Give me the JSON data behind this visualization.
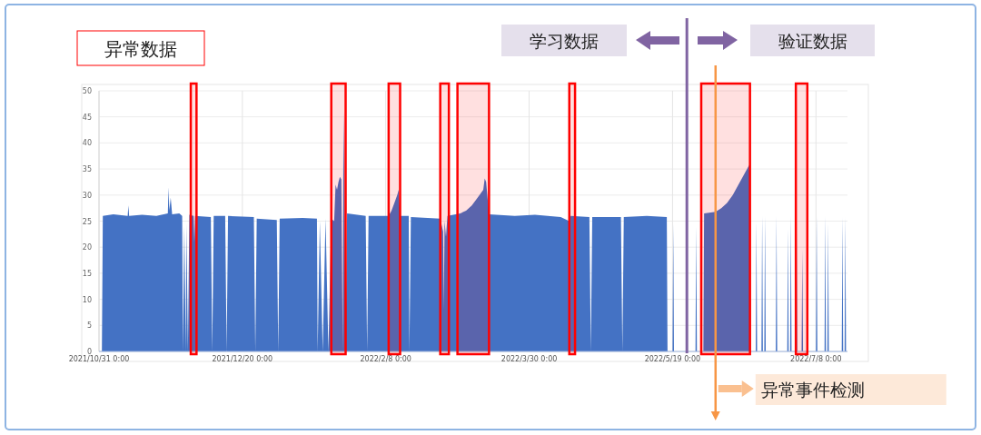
{
  "chart_data": {
    "type": "area",
    "title": "异常数据",
    "annotations": [
      "学习数据",
      "验证数据"
    ],
    "color": "#4472c4",
    "x": [
      "2021-11-01T00:00",
      "2021-11-01T08:00",
      "2021-11-05",
      "2021-11-10",
      "2021-11-10T06:00",
      "2021-11-10T12:00",
      "2021-11-15",
      "2021-11-20",
      "2021-11-24",
      "2021-11-24T06:00",
      "2021-11-24T12:00",
      "2021-11-25",
      "2021-11-25T12:00",
      "2021-11-28",
      "2021-11-29",
      "2021-11-29T06:00",
      "2021-11-29T18:00",
      "2021-11-30T06:00",
      "2021-11-30T12:00",
      "2021-12-01",
      "2021-12-01T12:00",
      "2021-12-03",
      "2021-12-03T06:00",
      "2021-12-03T12:00",
      "2021-12-09",
      "2021-12-09T12:00",
      "2021-12-10",
      "2021-12-14",
      "2021-12-14T12:00",
      "2021-12-15",
      "2021-12-24",
      "2021-12-24T12:00",
      "2021-12-25",
      "2022-01-01",
      "2022-01-01T12:00",
      "2022-01-02",
      "2022-01-10",
      "2022-01-15",
      "2022-01-15T06:00",
      "2022-01-16",
      "2022-01-17",
      "2022-01-18",
      "2022-01-19",
      "2022-01-20",
      "2022-01-21",
      "2022-01-21T12:00",
      "2022-01-22",
      "2022-01-22T12:00",
      "2022-01-23",
      "2022-01-23T12:00",
      "2022-01-24",
      "2022-01-24T06:00",
      "2022-01-24T12:00",
      "2022-01-25",
      "2022-01-25T12:00",
      "2022-02-01",
      "2022-02-01T12:00",
      "2022-02-02",
      "2022-02-09",
      "2022-02-10",
      "2022-02-11",
      "2022-02-12",
      "2022-02-12T12:00",
      "2022-02-13",
      "2022-02-16",
      "2022-02-16T06:00",
      "2022-02-16T18:00",
      "2022-02-27",
      "2022-02-28",
      "2022-02-28T06:00",
      "2022-02-28T12:00",
      "2022-03-01",
      "2022-03-01T12:00",
      "2022-03-06",
      "2022-03-08",
      "2022-03-10",
      "2022-03-12",
      "2022-03-14",
      "2022-03-14T12:00",
      "2022-03-15",
      "2022-03-16",
      "2022-03-25",
      "2022-04-01",
      "2022-04-10",
      "2022-04-13",
      "2022-04-13T12:00",
      "2022-04-20",
      "2022-04-20T12:00",
      "2022-04-21",
      "2022-05-01",
      "2022-05-01T12:00",
      "2022-05-02",
      "2022-05-10",
      "2022-05-17",
      "2022-05-17T06:00",
      "2022-05-19T00:00",
      "2022-05-19T06:00",
      "2022-05-19T12:00",
      "2022-05-27T00:00",
      "2022-05-27T06:00",
      "2022-05-27T12:00",
      "2022-05-29T18:00",
      "2022-05-30",
      "2022-06-03",
      "2022-06-05",
      "2022-06-07",
      "2022-06-09",
      "2022-06-11",
      "2022-06-13",
      "2022-06-15",
      "2022-06-15T06:00",
      "2022-06-17T00:00",
      "2022-06-17T06:00",
      "2022-06-17T12:00",
      "2022-06-19T00:00",
      "2022-06-19T06:00",
      "2022-06-19T12:00",
      "2022-06-20T00:00",
      "2022-06-20T06:00",
      "2022-06-20T12:00",
      "2022-06-24T00:00",
      "2022-06-24T06:00",
      "2022-06-24T12:00",
      "2022-06-28T00:00",
      "2022-06-28T06:00",
      "2022-06-28T12:00",
      "2022-06-29T00:00",
      "2022-06-29T06:00",
      "2022-06-29T12:00",
      "2022-07-01T00:00",
      "2022-07-01T06:00",
      "2022-07-01T12:00",
      "2022-07-03T00:00",
      "2022-07-03T06:00",
      "2022-07-03T12:00",
      "2022-07-08T00:00",
      "2022-07-08T06:00",
      "2022-07-08T12:00",
      "2022-07-11T00:00",
      "2022-07-11T06:00",
      "2022-07-11T12:00",
      "2022-07-12T00:00",
      "2022-07-12T06:00",
      "2022-07-12T12:00",
      "2022-07-17T00:00",
      "2022-07-17T06:00",
      "2022-07-17T12:00",
      "2022-07-18T00:00",
      "2022-07-18T06:00",
      "2022-07-18T12:00"
    ],
    "values": [
      0,
      26,
      26.3,
      26,
      28,
      26,
      26.2,
      26,
      26.5,
      31.5,
      27,
      29.5,
      26.3,
      26.5,
      26,
      0,
      24,
      0,
      24.5,
      0,
      26.2,
      26,
      21,
      26,
      25.8,
      0,
      26,
      26,
      0,
      26,
      25.8,
      0,
      25.5,
      25.2,
      0,
      25.5,
      25.6,
      25.5,
      0,
      25,
      0,
      25.5,
      0,
      25.5,
      25,
      32,
      31,
      32.5,
      33.5,
      33,
      0,
      46,
      35.5,
      0,
      26.5,
      26,
      0,
      26,
      26,
      27,
      28.5,
      30,
      31,
      26,
      26,
      0,
      25.8,
      25.5,
      23,
      8,
      25,
      22,
      26,
      26.5,
      27,
      28,
      29.5,
      31,
      33.2,
      32.5,
      26.3,
      26,
      26.2,
      25.8,
      25,
      26,
      25.8,
      0,
      25.8,
      25.8,
      0,
      25.8,
      26,
      25.8,
      0,
      0,
      24.5,
      0,
      0,
      24,
      0,
      0,
      26.5,
      26.8,
      27.5,
      28.5,
      30,
      32,
      34,
      36,
      0,
      0,
      25,
      0,
      0,
      26,
      0,
      0,
      26,
      0,
      0,
      26,
      0,
      0,
      23.5,
      0,
      0,
      26,
      0,
      0,
      26,
      0,
      0,
      19.5,
      0,
      0,
      26,
      0,
      0,
      26,
      0,
      0,
      24.5,
      0,
      0,
      25.8,
      0,
      0,
      25.8,
      0
    ],
    "xlim": [
      "2021-10-31",
      "2022-07-19"
    ],
    "xticks": [
      {
        "value": "2021-10-31",
        "label": "2021/10/31 0:00"
      },
      {
        "value": "2021-12-20",
        "label": "2021/12/20 0:00"
      },
      {
        "value": "2022-02-08",
        "label": "2022/2/8 0:00"
      },
      {
        "value": "2022-03-30",
        "label": "2022/3/30 0:00"
      },
      {
        "value": "2022-05-19",
        "label": "2022/5/19 0:00"
      },
      {
        "value": "2022-07-08",
        "label": "2022/7/8 0:00"
      }
    ],
    "ylim": [
      0,
      50
    ],
    "yticks": [
      0,
      5,
      10,
      15,
      20,
      25,
      30,
      35,
      40,
      45,
      50
    ],
    "grid": true,
    "bands": [
      {
        "axis": "x",
        "from": "2021-12-02",
        "to": "2021-12-04",
        "color": "#ff0000"
      },
      {
        "axis": "x",
        "from": "2022-01-20",
        "to": "2022-01-25",
        "color": "#ff0000"
      },
      {
        "axis": "x",
        "from": "2022-02-09",
        "to": "2022-02-13",
        "color": "#ff0000"
      },
      {
        "axis": "x",
        "from": "2022-02-27",
        "to": "2022-03-02",
        "color": "#ff0000"
      },
      {
        "axis": "x",
        "from": "2022-03-05",
        "to": "2022-03-16",
        "color": "#ff0000"
      },
      {
        "axis": "x",
        "from": "2022-04-13",
        "to": "2022-04-15",
        "color": "#ff0000"
      },
      {
        "axis": "x",
        "from": "2022-05-29",
        "to": "2022-06-15",
        "color": "#ff0000"
      },
      {
        "axis": "x",
        "from": "2022-07-01",
        "to": "2022-07-05",
        "color": "#ff0000"
      }
    ],
    "ref_lines": [
      {
        "axis": "x",
        "value": "2022-05-24",
        "color": "#8064a2"
      },
      {
        "axis": "x",
        "value": "2022-06-03",
        "label": "异常事件检测",
        "color": "#f79646"
      }
    ]
  }
}
